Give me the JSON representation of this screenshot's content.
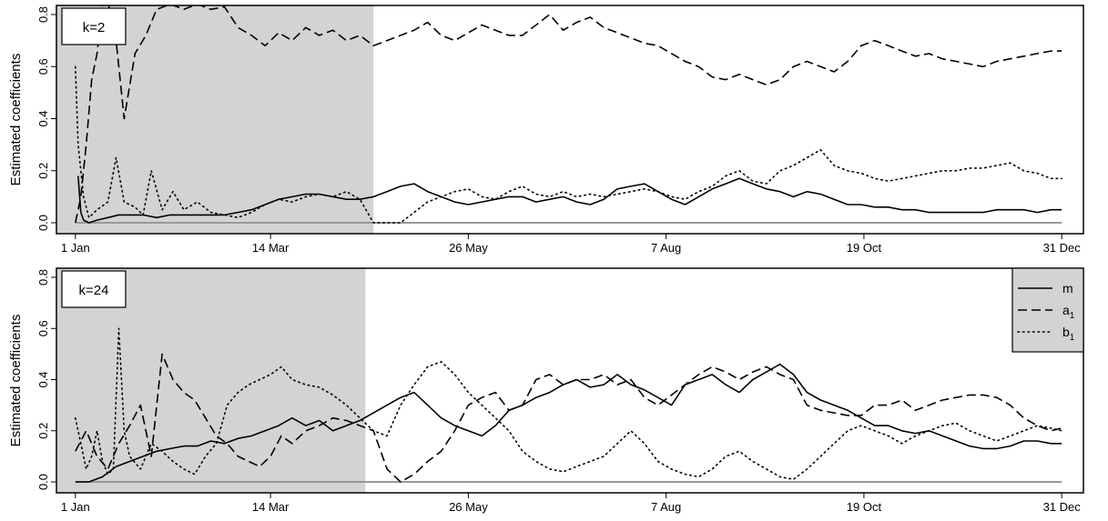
{
  "chart_data": [
    {
      "type": "line",
      "panel_label": "k=2",
      "ylabel": "Estimated coefficients",
      "ylim": [
        0,
        0.8
      ],
      "yticks": [
        0.0,
        0.2,
        0.4,
        0.6,
        0.8
      ],
      "ytick_labels": [
        "0.0",
        "0.2",
        "0.4",
        "0.6",
        "0.8"
      ],
      "xlim": [
        -7,
        372
      ],
      "xticks": [
        0,
        72,
        145,
        218,
        291,
        364
      ],
      "xtick_labels": [
        "1 Jan",
        "14 Mar",
        "26 May",
        "7 Aug",
        "19 Oct",
        "31 Dec"
      ],
      "shaded_region": [
        -7,
        110
      ],
      "shade_color": "#d3d3d3",
      "reference_line": {
        "y": 0,
        "color": "#999999"
      },
      "legend": false,
      "series": [
        {
          "name": "m",
          "style": "solid",
          "x": [
            1,
            2,
            3,
            5,
            8,
            12,
            16,
            20,
            25,
            30,
            35,
            40,
            45,
            50,
            55,
            60,
            65,
            70,
            75,
            80,
            85,
            90,
            95,
            100,
            105,
            110,
            115,
            120,
            125,
            130,
            135,
            140,
            145,
            150,
            155,
            160,
            165,
            170,
            175,
            180,
            185,
            190,
            195,
            200,
            205,
            210,
            215,
            220,
            225,
            230,
            235,
            240,
            245,
            250,
            255,
            260,
            265,
            270,
            275,
            280,
            285,
            290,
            295,
            300,
            305,
            310,
            315,
            320,
            325,
            330,
            335,
            340,
            345,
            350,
            355,
            360,
            364
          ],
          "y": [
            0.18,
            0.04,
            0.01,
            0.0,
            0.01,
            0.02,
            0.03,
            0.03,
            0.03,
            0.02,
            0.03,
            0.03,
            0.03,
            0.03,
            0.03,
            0.04,
            0.05,
            0.07,
            0.09,
            0.1,
            0.11,
            0.11,
            0.1,
            0.09,
            0.09,
            0.1,
            0.12,
            0.14,
            0.15,
            0.12,
            0.1,
            0.08,
            0.07,
            0.08,
            0.09,
            0.1,
            0.1,
            0.08,
            0.09,
            0.1,
            0.08,
            0.07,
            0.09,
            0.13,
            0.14,
            0.15,
            0.12,
            0.09,
            0.07,
            0.1,
            0.13,
            0.15,
            0.17,
            0.15,
            0.13,
            0.12,
            0.1,
            0.12,
            0.11,
            0.09,
            0.07,
            0.07,
            0.06,
            0.06,
            0.05,
            0.05,
            0.04,
            0.04,
            0.04,
            0.04,
            0.04,
            0.05,
            0.05,
            0.05,
            0.04,
            0.05,
            0.05
          ]
        },
        {
          "name": "a1",
          "style": "dashed",
          "x": [
            0,
            2,
            4,
            6,
            8,
            10,
            12,
            15,
            18,
            22,
            26,
            30,
            35,
            40,
            45,
            50,
            55,
            60,
            65,
            70,
            75,
            80,
            85,
            90,
            95,
            100,
            105,
            110,
            115,
            120,
            125,
            130,
            135,
            140,
            145,
            150,
            155,
            160,
            165,
            170,
            175,
            180,
            185,
            190,
            195,
            200,
            205,
            210,
            215,
            220,
            225,
            230,
            235,
            240,
            245,
            250,
            255,
            260,
            265,
            270,
            275,
            280,
            285,
            290,
            295,
            300,
            305,
            310,
            315,
            320,
            325,
            330,
            335,
            340,
            345,
            350,
            355,
            360,
            364
          ],
          "y": [
            0.0,
            0.1,
            0.3,
            0.55,
            0.65,
            0.85,
            0.85,
            0.7,
            0.4,
            0.65,
            0.72,
            0.82,
            0.84,
            0.82,
            0.84,
            0.82,
            0.83,
            0.75,
            0.72,
            0.68,
            0.73,
            0.7,
            0.75,
            0.72,
            0.74,
            0.7,
            0.72,
            0.68,
            0.7,
            0.72,
            0.74,
            0.77,
            0.72,
            0.7,
            0.73,
            0.76,
            0.74,
            0.72,
            0.72,
            0.76,
            0.8,
            0.74,
            0.77,
            0.79,
            0.75,
            0.73,
            0.71,
            0.69,
            0.68,
            0.65,
            0.62,
            0.6,
            0.56,
            0.55,
            0.57,
            0.55,
            0.53,
            0.55,
            0.6,
            0.62,
            0.6,
            0.58,
            0.62,
            0.68,
            0.7,
            0.68,
            0.66,
            0.64,
            0.65,
            0.63,
            0.62,
            0.61,
            0.6,
            0.62,
            0.63,
            0.64,
            0.65,
            0.66,
            0.66
          ]
        },
        {
          "name": "b1",
          "style": "dotted",
          "x": [
            0,
            1,
            3,
            5,
            8,
            12,
            15,
            18,
            22,
            25,
            28,
            32,
            36,
            40,
            45,
            50,
            55,
            60,
            65,
            70,
            75,
            80,
            85,
            90,
            95,
            100,
            105,
            110,
            115,
            120,
            125,
            130,
            135,
            140,
            145,
            150,
            155,
            160,
            165,
            170,
            175,
            180,
            185,
            190,
            195,
            200,
            205,
            210,
            215,
            220,
            225,
            230,
            235,
            240,
            245,
            250,
            255,
            260,
            265,
            270,
            275,
            280,
            285,
            290,
            295,
            300,
            305,
            310,
            315,
            320,
            325,
            330,
            335,
            340,
            345,
            350,
            355,
            360,
            364
          ],
          "y": [
            0.6,
            0.3,
            0.1,
            0.02,
            0.05,
            0.08,
            0.25,
            0.08,
            0.06,
            0.03,
            0.2,
            0.05,
            0.12,
            0.05,
            0.08,
            0.04,
            0.03,
            0.02,
            0.04,
            0.07,
            0.09,
            0.08,
            0.1,
            0.11,
            0.1,
            0.12,
            0.09,
            0.0,
            0.0,
            0.0,
            0.04,
            0.08,
            0.1,
            0.12,
            0.13,
            0.1,
            0.09,
            0.12,
            0.14,
            0.11,
            0.1,
            0.12,
            0.1,
            0.11,
            0.1,
            0.11,
            0.12,
            0.13,
            0.12,
            0.1,
            0.09,
            0.12,
            0.14,
            0.18,
            0.2,
            0.16,
            0.15,
            0.2,
            0.22,
            0.25,
            0.28,
            0.22,
            0.2,
            0.19,
            0.17,
            0.16,
            0.17,
            0.18,
            0.19,
            0.2,
            0.2,
            0.21,
            0.21,
            0.22,
            0.23,
            0.2,
            0.19,
            0.17,
            0.17
          ]
        }
      ]
    },
    {
      "type": "line",
      "panel_label": "k=24",
      "ylabel": "Estimated coefficients",
      "ylim": [
        0,
        0.8
      ],
      "yticks": [
        0.0,
        0.2,
        0.4,
        0.6,
        0.8
      ],
      "ytick_labels": [
        "0.0",
        "0.2",
        "0.4",
        "0.6",
        "0.8"
      ],
      "xlim": [
        -7,
        372
      ],
      "xticks": [
        0,
        72,
        145,
        218,
        291,
        364
      ],
      "xtick_labels": [
        "1 Jan",
        "14 Mar",
        "26 May",
        "7 Aug",
        "19 Oct",
        "31 Dec"
      ],
      "shaded_region": [
        -7,
        107
      ],
      "shade_color": "#d3d3d3",
      "reference_line": {
        "y": 0,
        "color": "#999999"
      },
      "legend": true,
      "legend_position": "top-right",
      "legend_entries": [
        {
          "label": "m",
          "sub": "",
          "style": "solid"
        },
        {
          "label": "a",
          "sub": "1",
          "style": "dashed"
        },
        {
          "label": "b",
          "sub": "1",
          "style": "dotted"
        }
      ],
      "series": [
        {
          "name": "m",
          "style": "solid",
          "x": [
            0,
            5,
            10,
            15,
            20,
            25,
            30,
            35,
            40,
            45,
            50,
            55,
            60,
            65,
            70,
            75,
            80,
            85,
            90,
            95,
            100,
            105,
            110,
            115,
            120,
            125,
            130,
            135,
            140,
            145,
            150,
            155,
            160,
            165,
            170,
            175,
            180,
            185,
            190,
            195,
            200,
            205,
            210,
            215,
            220,
            225,
            230,
            235,
            240,
            245,
            250,
            255,
            260,
            265,
            270,
            275,
            280,
            285,
            290,
            295,
            300,
            305,
            310,
            315,
            320,
            325,
            330,
            335,
            340,
            345,
            350,
            355,
            360,
            364
          ],
          "y": [
            0.0,
            0.0,
            0.02,
            0.06,
            0.08,
            0.1,
            0.12,
            0.13,
            0.14,
            0.14,
            0.16,
            0.15,
            0.17,
            0.18,
            0.2,
            0.22,
            0.25,
            0.22,
            0.24,
            0.2,
            0.22,
            0.24,
            0.27,
            0.3,
            0.33,
            0.35,
            0.3,
            0.25,
            0.22,
            0.2,
            0.18,
            0.22,
            0.28,
            0.3,
            0.33,
            0.35,
            0.38,
            0.4,
            0.37,
            0.38,
            0.42,
            0.38,
            0.36,
            0.33,
            0.3,
            0.38,
            0.4,
            0.42,
            0.38,
            0.35,
            0.4,
            0.43,
            0.46,
            0.42,
            0.35,
            0.32,
            0.3,
            0.28,
            0.25,
            0.22,
            0.22,
            0.2,
            0.19,
            0.2,
            0.18,
            0.16,
            0.14,
            0.13,
            0.13,
            0.14,
            0.16,
            0.16,
            0.15,
            0.15
          ]
        },
        {
          "name": "a1",
          "style": "dashed",
          "x": [
            0,
            4,
            8,
            12,
            16,
            20,
            24,
            28,
            32,
            36,
            40,
            44,
            48,
            52,
            56,
            60,
            64,
            68,
            72,
            76,
            80,
            85,
            90,
            95,
            100,
            105,
            110,
            115,
            120,
            125,
            130,
            135,
            140,
            145,
            150,
            155,
            160,
            165,
            170,
            175,
            180,
            185,
            190,
            195,
            200,
            205,
            210,
            215,
            220,
            225,
            230,
            235,
            240,
            245,
            250,
            255,
            260,
            265,
            270,
            275,
            280,
            285,
            290,
            295,
            300,
            305,
            310,
            315,
            320,
            325,
            330,
            335,
            340,
            345,
            350,
            355,
            360,
            364
          ],
          "y": [
            0.12,
            0.2,
            0.1,
            0.05,
            0.15,
            0.22,
            0.3,
            0.1,
            0.5,
            0.4,
            0.35,
            0.32,
            0.25,
            0.18,
            0.15,
            0.1,
            0.08,
            0.06,
            0.1,
            0.18,
            0.15,
            0.2,
            0.22,
            0.25,
            0.24,
            0.22,
            0.2,
            0.05,
            0.0,
            0.03,
            0.08,
            0.12,
            0.2,
            0.3,
            0.33,
            0.35,
            0.28,
            0.3,
            0.4,
            0.42,
            0.38,
            0.4,
            0.4,
            0.42,
            0.38,
            0.4,
            0.33,
            0.3,
            0.34,
            0.38,
            0.42,
            0.45,
            0.43,
            0.4,
            0.43,
            0.45,
            0.42,
            0.4,
            0.3,
            0.28,
            0.27,
            0.26,
            0.26,
            0.3,
            0.3,
            0.32,
            0.28,
            0.3,
            0.32,
            0.33,
            0.34,
            0.34,
            0.33,
            0.3,
            0.25,
            0.22,
            0.2,
            0.21
          ]
        },
        {
          "name": "b1",
          "style": "dotted",
          "x": [
            0,
            2,
            4,
            6,
            8,
            10,
            12,
            14,
            16,
            18,
            20,
            24,
            28,
            32,
            36,
            40,
            44,
            48,
            52,
            56,
            60,
            64,
            68,
            72,
            76,
            80,
            85,
            90,
            95,
            100,
            105,
            110,
            115,
            120,
            125,
            130,
            135,
            140,
            145,
            150,
            155,
            160,
            165,
            170,
            175,
            180,
            185,
            190,
            195,
            200,
            205,
            210,
            215,
            220,
            225,
            230,
            235,
            240,
            245,
            250,
            255,
            260,
            265,
            270,
            275,
            280,
            285,
            290,
            295,
            300,
            305,
            310,
            315,
            320,
            325,
            330,
            335,
            340,
            345,
            350,
            355,
            360,
            364
          ],
          "y": [
            0.25,
            0.15,
            0.05,
            0.1,
            0.2,
            0.08,
            0.03,
            0.05,
            0.6,
            0.2,
            0.1,
            0.05,
            0.15,
            0.12,
            0.08,
            0.05,
            0.03,
            0.1,
            0.15,
            0.3,
            0.35,
            0.38,
            0.4,
            0.42,
            0.45,
            0.4,
            0.38,
            0.37,
            0.34,
            0.3,
            0.25,
            0.2,
            0.18,
            0.3,
            0.38,
            0.45,
            0.47,
            0.42,
            0.35,
            0.3,
            0.25,
            0.2,
            0.12,
            0.08,
            0.05,
            0.04,
            0.06,
            0.08,
            0.1,
            0.15,
            0.2,
            0.15,
            0.08,
            0.05,
            0.03,
            0.02,
            0.05,
            0.1,
            0.12,
            0.08,
            0.05,
            0.02,
            0.01,
            0.05,
            0.1,
            0.15,
            0.2,
            0.22,
            0.2,
            0.18,
            0.15,
            0.18,
            0.2,
            0.22,
            0.23,
            0.2,
            0.18,
            0.16,
            0.18,
            0.2,
            0.22,
            0.21,
            0.2
          ]
        }
      ]
    }
  ]
}
